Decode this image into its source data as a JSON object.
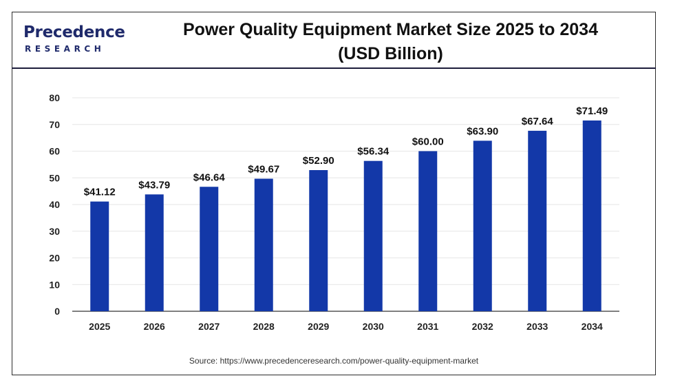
{
  "brand": {
    "logo_primary": "Precedence",
    "logo_secondary": "RESEARCH",
    "color": "#1f2a6b"
  },
  "header": {
    "title_line1": "Power Quality Equipment Market Size 2025 to 2034",
    "title_line2": "(USD Billion)"
  },
  "footer": {
    "source": "Source: https://www.precedenceresearch.com/power-quality-equipment-market"
  },
  "chart_data": {
    "type": "bar",
    "categories": [
      "2025",
      "2026",
      "2027",
      "2028",
      "2029",
      "2030",
      "2031",
      "2032",
      "2033",
      "2034"
    ],
    "values": [
      41.12,
      43.79,
      46.64,
      49.67,
      52.9,
      56.34,
      60.0,
      63.9,
      67.64,
      71.49
    ],
    "value_labels": [
      "$41.12",
      "$43.79",
      "$46.64",
      "$49.67",
      "$52.90",
      "$56.34",
      "$60.00",
      "$63.90",
      "$67.64",
      "$71.49"
    ],
    "title": "Power Quality Equipment Market Size 2025 to 2034 (USD Billion)",
    "xlabel": "",
    "ylabel": "",
    "ylim": [
      0,
      80
    ],
    "yticks": [
      0,
      10,
      20,
      30,
      40,
      50,
      60,
      70,
      80
    ],
    "grid": true,
    "legend": "none",
    "bar_color": "#1338a8"
  }
}
